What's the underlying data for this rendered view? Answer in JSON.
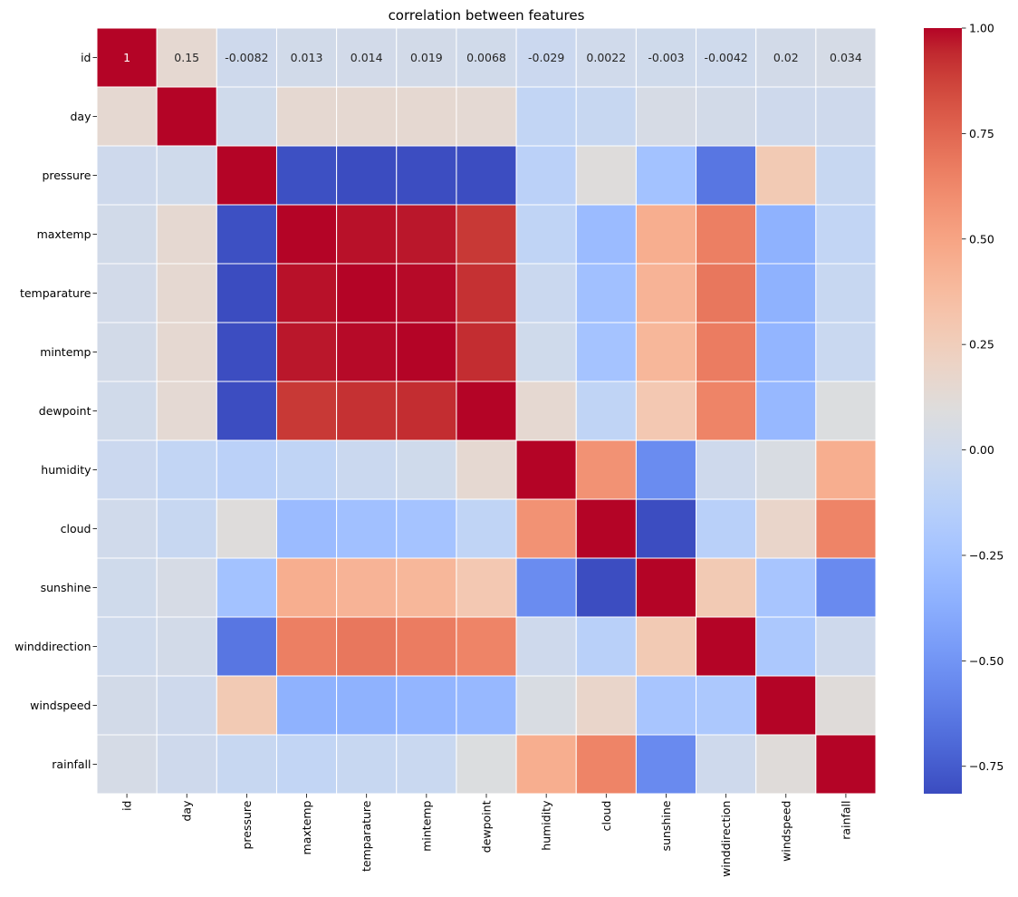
{
  "chart_data": {
    "type": "heatmap",
    "title": "correlation between features",
    "xlabel": "",
    "ylabel": "",
    "x_labels": [
      "id",
      "day",
      "pressure",
      "maxtemp",
      "temparature",
      "mintemp",
      "dewpoint",
      "humidity",
      "cloud",
      "sunshine",
      "winddirection",
      "windspeed",
      "rainfall"
    ],
    "y_labels": [
      "id",
      "day",
      "pressure",
      "maxtemp",
      "temparature",
      "mintemp",
      "dewpoint",
      "humidity",
      "cloud",
      "sunshine",
      "winddirection",
      "windspeed",
      "rainfall"
    ],
    "colormap": "coolwarm",
    "vmin": -0.815,
    "vmax": 1.0,
    "annotated_rows": [
      0
    ],
    "annotations": [
      "1",
      "0.15",
      "-0.0082",
      "0.013",
      "0.014",
      "0.019",
      "0.0068",
      "-0.029",
      "0.0022",
      "-0.003",
      "-0.0042",
      "0.02",
      "0.034"
    ],
    "values": [
      [
        1.0,
        0.15,
        -0.0082,
        0.013,
        0.014,
        0.019,
        0.0068,
        -0.029,
        0.0022,
        -0.003,
        -0.0042,
        0.02,
        0.034
      ],
      [
        0.15,
        1.0,
        -0.0,
        0.15,
        0.15,
        0.15,
        0.14,
        -0.08,
        -0.05,
        0.04,
        0.02,
        -0.01,
        -0.01
      ],
      [
        -0.0082,
        -0.0,
        1.0,
        -0.8,
        -0.82,
        -0.81,
        -0.81,
        -0.12,
        0.1,
        -0.25,
        -0.64,
        0.28,
        -0.05
      ],
      [
        0.013,
        0.15,
        -0.8,
        1.0,
        0.98,
        0.97,
        0.9,
        -0.09,
        -0.29,
        0.45,
        0.66,
        -0.35,
        -0.08
      ],
      [
        0.014,
        0.15,
        -0.82,
        0.98,
        1.0,
        0.99,
        0.92,
        -0.03,
        -0.26,
        0.42,
        0.69,
        -0.35,
        -0.05
      ],
      [
        0.019,
        0.15,
        -0.81,
        0.97,
        0.99,
        1.0,
        0.93,
        0.0,
        -0.24,
        0.4,
        0.67,
        -0.33,
        -0.04
      ],
      [
        0.0068,
        0.14,
        -0.81,
        0.9,
        0.92,
        0.93,
        1.0,
        0.15,
        -0.09,
        0.29,
        0.64,
        -0.31,
        0.08
      ],
      [
        -0.029,
        -0.08,
        -0.12,
        -0.09,
        -0.03,
        0.0,
        0.15,
        1.0,
        0.58,
        -0.54,
        -0.01,
        0.06,
        0.45
      ],
      [
        0.0022,
        -0.05,
        0.1,
        -0.29,
        -0.26,
        -0.24,
        -0.09,
        0.58,
        1.0,
        -0.81,
        -0.13,
        0.18,
        0.64
      ],
      [
        -0.003,
        0.04,
        -0.25,
        0.45,
        0.42,
        0.4,
        0.29,
        -0.54,
        -0.81,
        1.0,
        0.28,
        -0.22,
        -0.55
      ],
      [
        -0.0042,
        0.02,
        -0.64,
        0.66,
        0.69,
        0.67,
        0.64,
        -0.01,
        -0.13,
        0.28,
        1.0,
        -0.2,
        -0.01
      ],
      [
        0.02,
        -0.01,
        0.28,
        -0.35,
        -0.35,
        -0.33,
        -0.31,
        0.06,
        0.18,
        -0.22,
        -0.2,
        1.0,
        0.11
      ],
      [
        0.034,
        -0.01,
        -0.05,
        -0.08,
        -0.05,
        -0.04,
        0.08,
        0.45,
        0.64,
        -0.55,
        -0.01,
        0.11,
        1.0
      ]
    ],
    "colorbar": {
      "ticks": [
        1.0,
        0.75,
        0.5,
        0.25,
        0.0,
        -0.25,
        -0.5,
        -0.75
      ],
      "tick_labels": [
        "1.00",
        "0.75",
        "0.50",
        "0.25",
        "0.00",
        "−0.25",
        "−0.50",
        "−0.75"
      ],
      "placement": "right"
    },
    "grid": false
  }
}
